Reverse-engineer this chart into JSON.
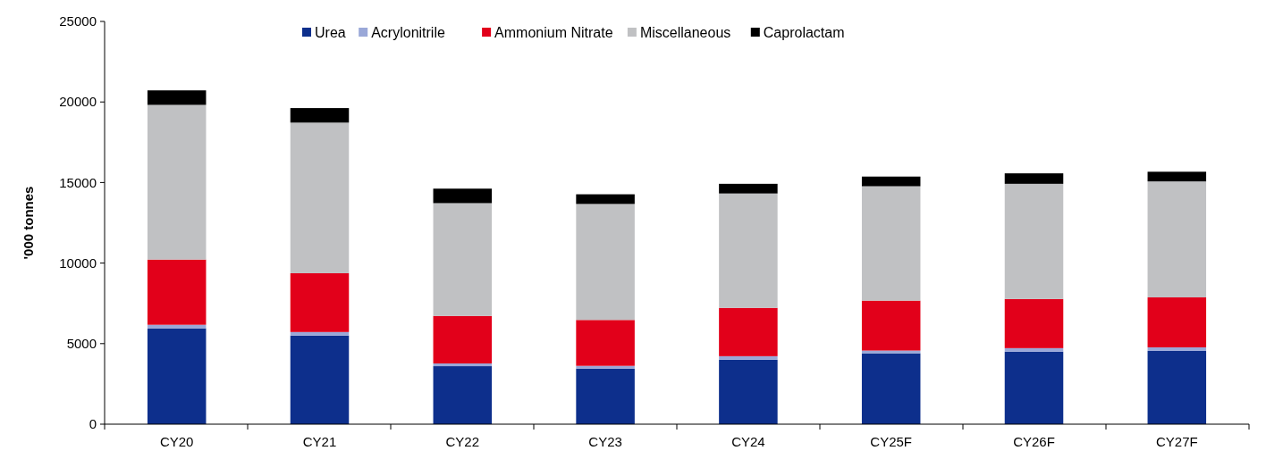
{
  "chart_data": {
    "type": "bar",
    "stacked": true,
    "ylabel": "'000 tonnes",
    "categories": [
      "CY20",
      "CY21",
      "CY22",
      "CY23",
      "CY24",
      "CY25F",
      "CY26F",
      "CY27F"
    ],
    "ylim": [
      0,
      25000
    ],
    "yticks": [
      0,
      5000,
      10000,
      15000,
      20000,
      25000
    ],
    "grid": false,
    "legend": "top",
    "series": [
      {
        "name": "Urea",
        "color": "#0d2f8c",
        "values": [
          5950,
          5500,
          3600,
          3450,
          4000,
          4400,
          4500,
          4550
        ]
      },
      {
        "name": "Acrylonitrile",
        "color": "#9aa8d8",
        "values": [
          220,
          220,
          170,
          170,
          220,
          170,
          220,
          220
        ]
      },
      {
        "name": "Ammonium Nitrate",
        "color": "#e2001a",
        "values": [
          4050,
          3650,
          2950,
          2850,
          3000,
          3100,
          3050,
          3100
        ]
      },
      {
        "name": "Miscellaneous",
        "color": "#c0c1c3",
        "values": [
          9600,
          9350,
          7000,
          7200,
          7100,
          7100,
          7150,
          7200
        ]
      },
      {
        "name": "Caprolactam",
        "color": "#000000",
        "values": [
          900,
          900,
          900,
          600,
          600,
          600,
          650,
          600
        ]
      }
    ]
  }
}
